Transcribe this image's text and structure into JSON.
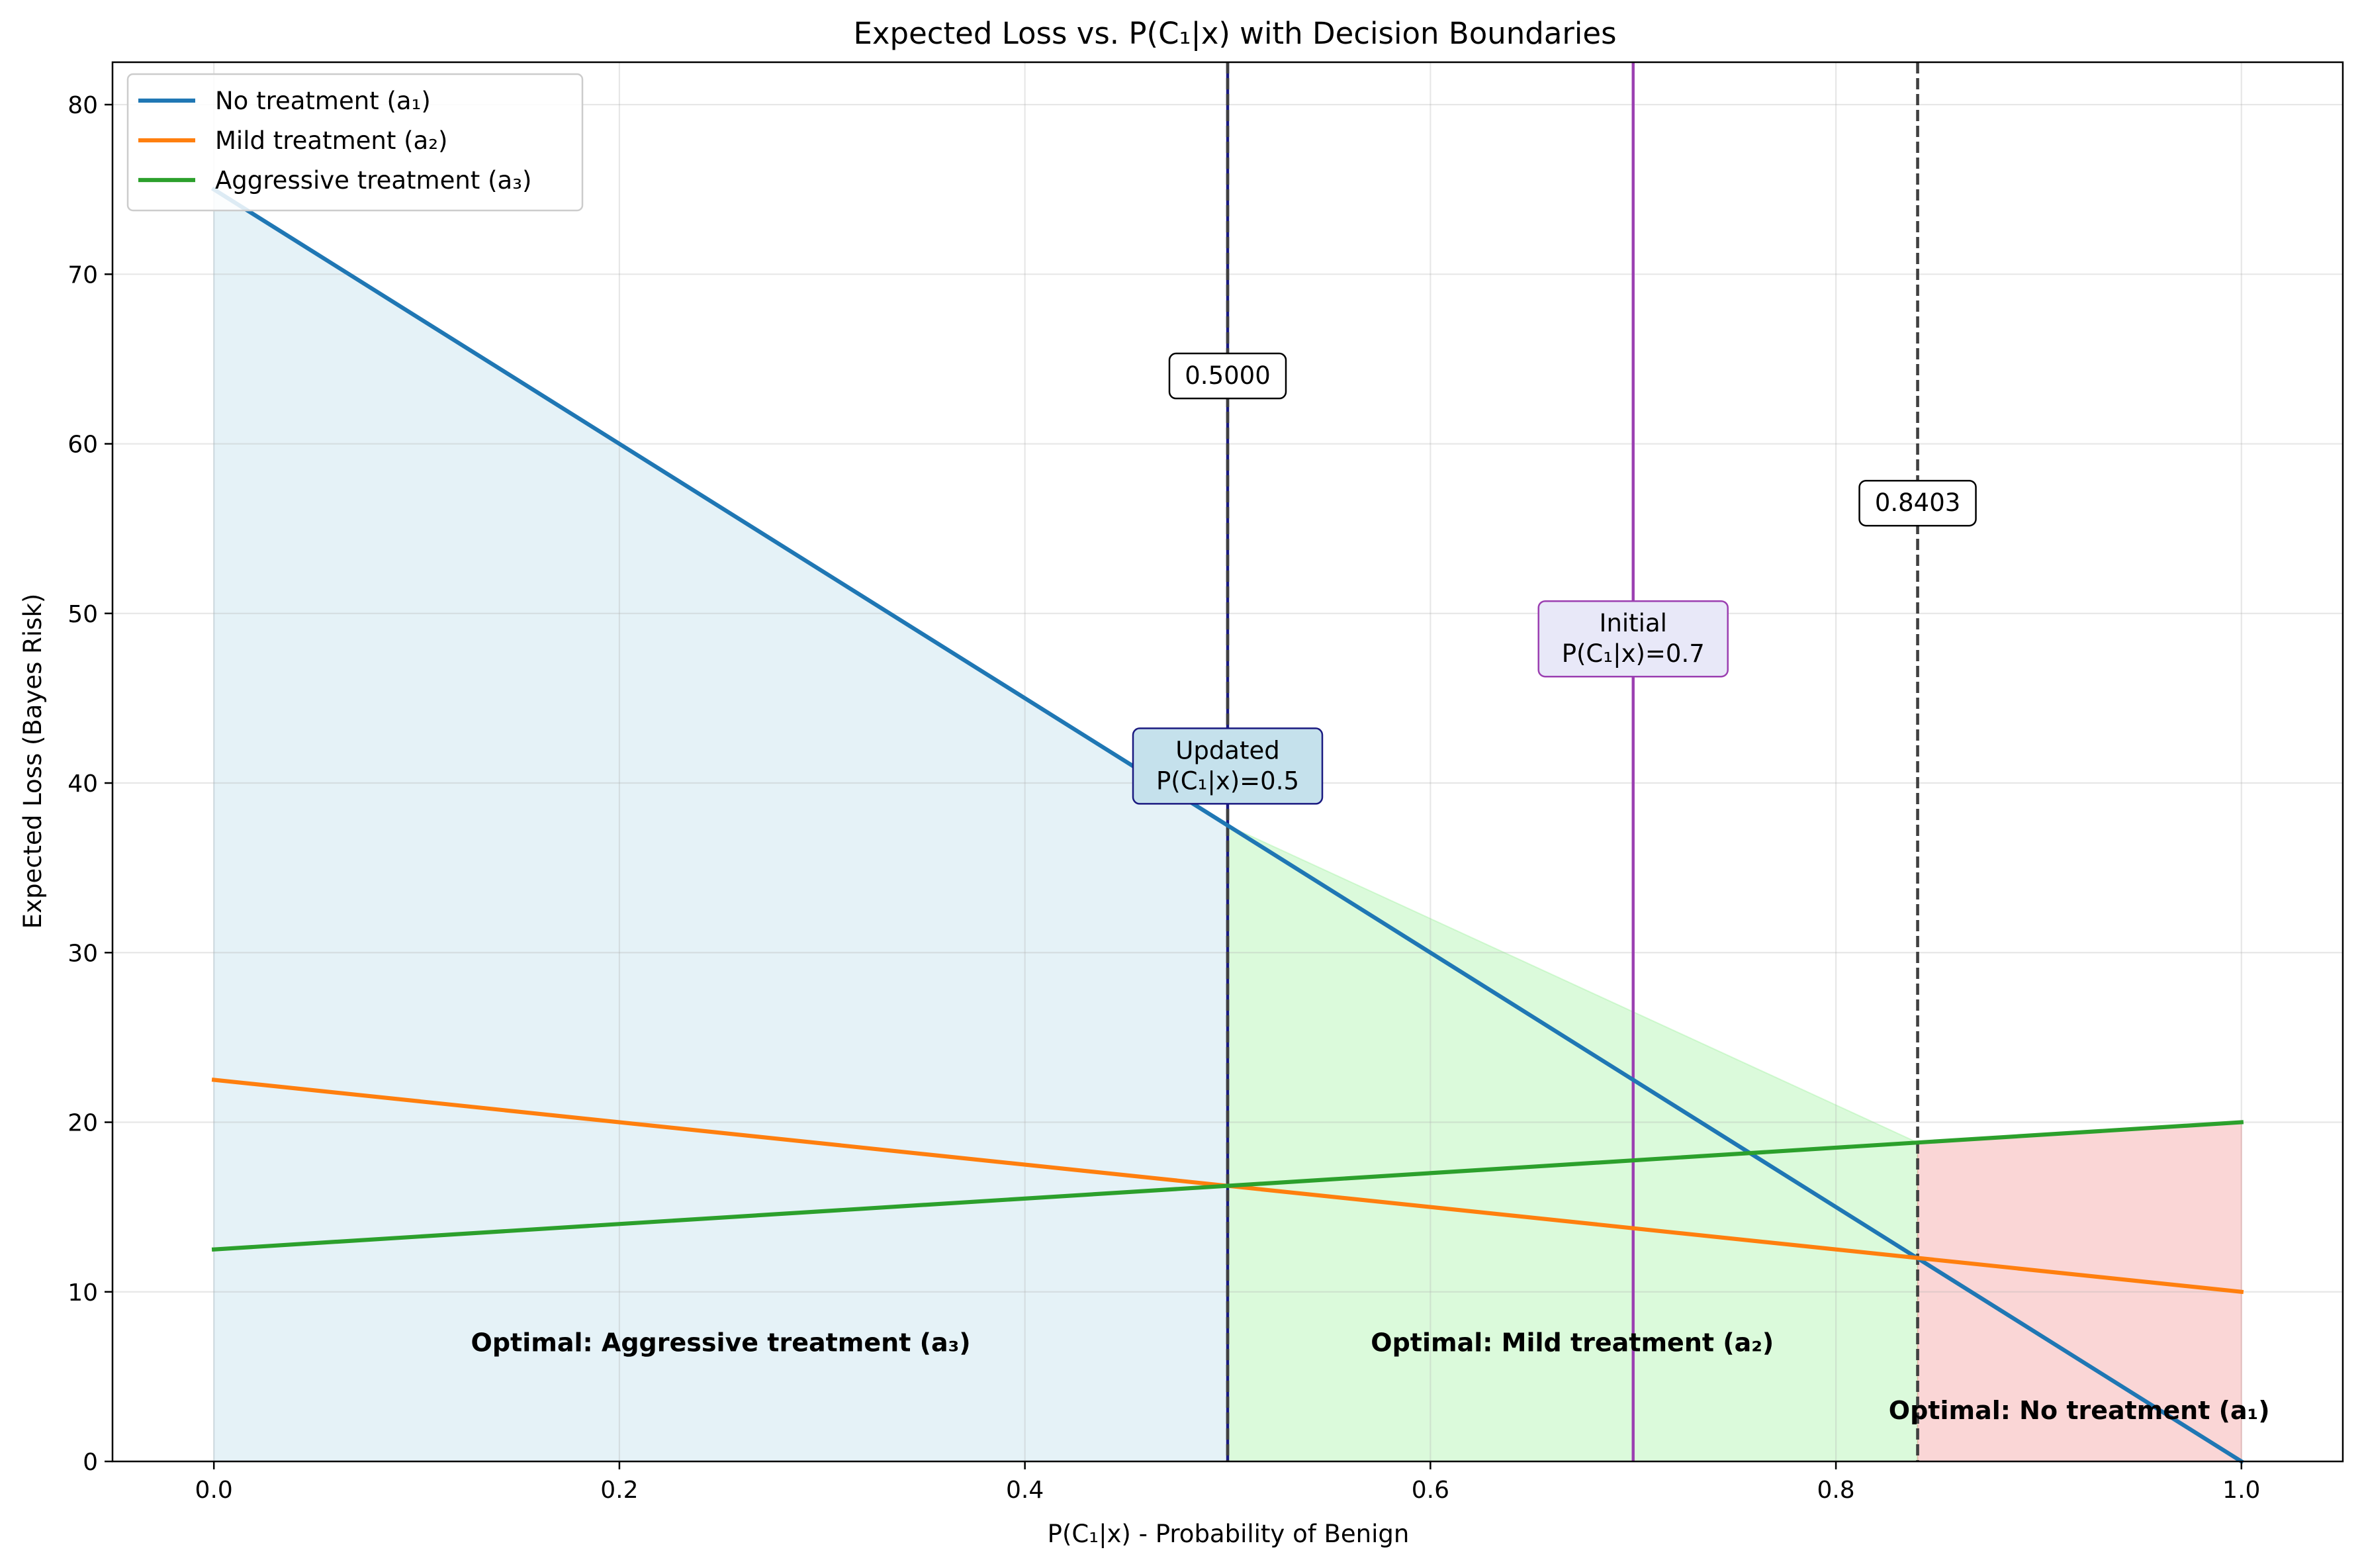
{
  "chart_data": {
    "type": "line",
    "title": "Expected Loss vs. P(C₁|x) with Decision Boundaries",
    "xlabel": "P(C₁|x) - Probability of Benign",
    "ylabel": "Expected Loss (Bayes Risk)",
    "xlim": [
      -0.05,
      1.05
    ],
    "ylim": [
      0,
      82.5
    ],
    "xticks": [
      0.0,
      0.2,
      0.4,
      0.6,
      0.8,
      1.0
    ],
    "xtick_labels": [
      "0.0",
      "0.2",
      "0.4",
      "0.6",
      "0.8",
      "1.0"
    ],
    "yticks": [
      0,
      10,
      20,
      30,
      40,
      50,
      60,
      70,
      80
    ],
    "ytick_labels": [
      "0",
      "10",
      "20",
      "30",
      "40",
      "50",
      "60",
      "70",
      "80"
    ],
    "grid": true,
    "legend_position": "top-left",
    "series": [
      {
        "name": "No treatment (a₁)",
        "color": "#1f77b4",
        "x": [
          0.0,
          1.0
        ],
        "y": [
          75.0,
          0.0
        ]
      },
      {
        "name": "Mild treatment (a₂)",
        "color": "#ff7f0e",
        "x": [
          0.0,
          1.0
        ],
        "y": [
          22.5,
          10.0
        ]
      },
      {
        "name": "Aggressive treatment (a₃)",
        "color": "#2ca02c",
        "x": [
          0.0,
          1.0
        ],
        "y": [
          12.5,
          20.0
        ]
      }
    ],
    "regions": [
      {
        "label": "Optimal: Aggressive treatment (a₃)",
        "x_from": 0.0,
        "x_to": 0.5,
        "color": "#add8e6",
        "label_x": 0.25,
        "label_y": 7.0
      },
      {
        "label": "Optimal: Mild treatment (a₂)",
        "x_from": 0.5,
        "x_to": 0.8403,
        "color": "#90ee90",
        "label_x": 0.67,
        "label_y": 7.0
      },
      {
        "label": "Optimal: No treatment (a₁)",
        "x_from": 0.8403,
        "x_to": 1.0,
        "color": "#f08080",
        "label_x": 0.92,
        "label_y": 3.0
      }
    ],
    "boundaries": [
      {
        "x": 0.5,
        "label": "0.5000",
        "label_y": 64.0,
        "color": "#404040"
      },
      {
        "x": 0.8403,
        "label": "0.8403",
        "label_y": 56.5,
        "color": "#404040"
      }
    ],
    "markers": [
      {
        "x": 0.7,
        "lines": [
          "Initial",
          "P(C₁|x)=0.7"
        ],
        "color": "#9b3fb1",
        "box_fill": "#e8e8f8",
        "label_y": 48.5
      },
      {
        "x": 0.5,
        "lines": [
          "Updated",
          "P(C₁|x)=0.5"
        ],
        "color": "#1a1a80",
        "box_fill": "#c5e1ec",
        "label_y": 41.0
      }
    ]
  }
}
